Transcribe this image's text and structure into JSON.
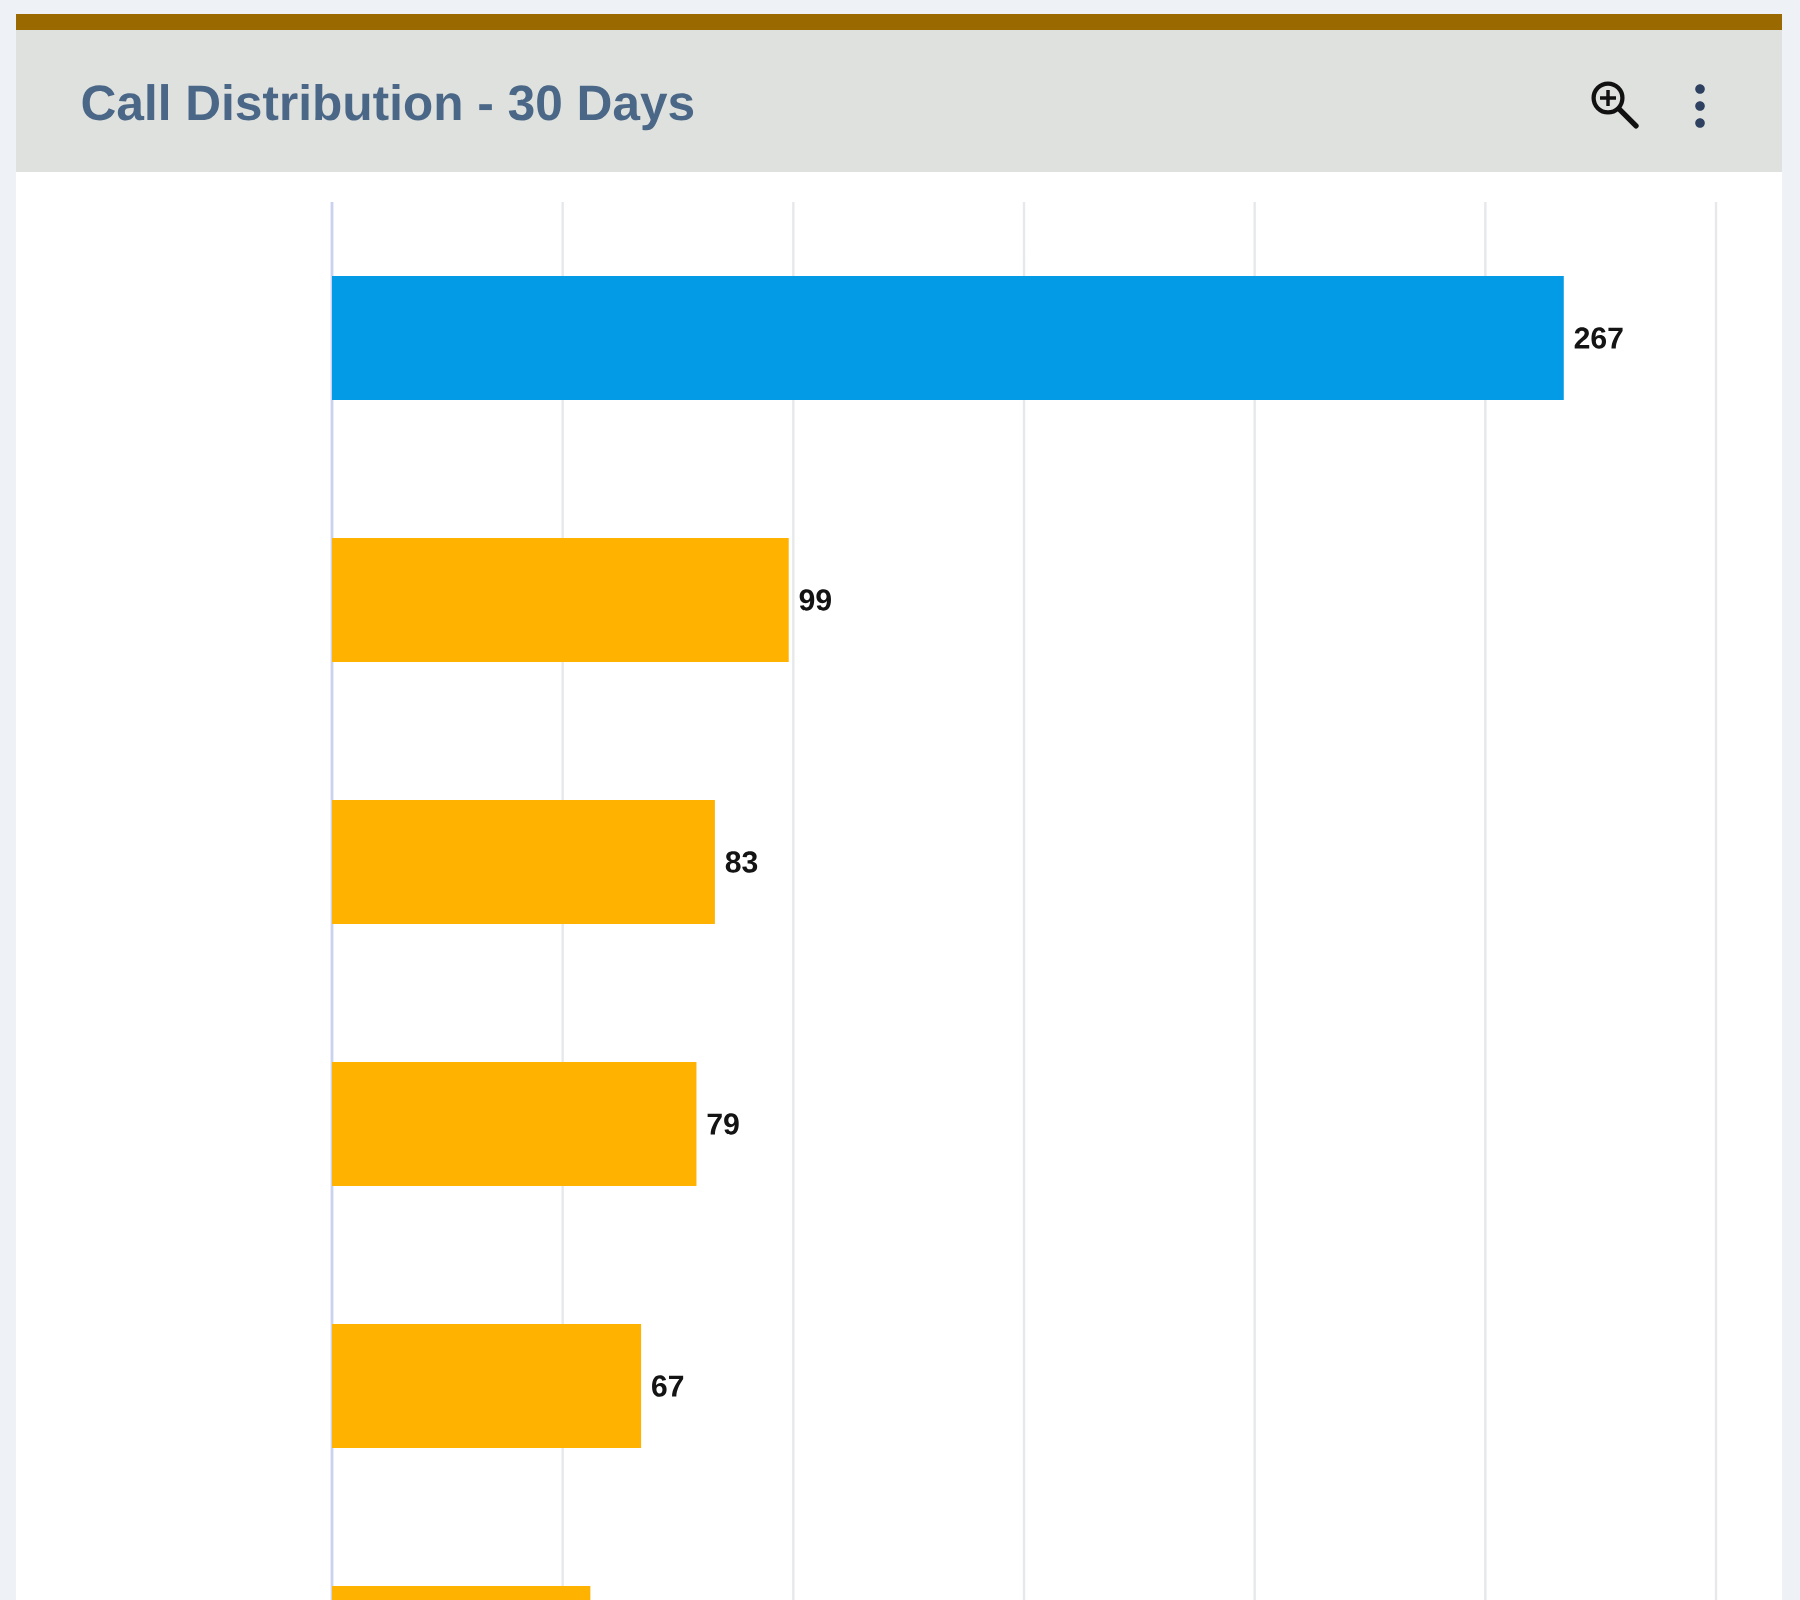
{
  "chart_data": {
    "type": "bar",
    "orientation": "horizontal",
    "title": "Call Distribution - 30 Days",
    "categories": [
      null,
      null,
      null,
      null,
      null,
      null
    ],
    "values": [
      267,
      99,
      83,
      79,
      67,
      56
    ],
    "colors": [
      "#039be5",
      "#ffb300",
      "#ffb300",
      "#ffb300",
      "#ffb300",
      "#ffb300"
    ],
    "value_labels": [
      "267",
      "99",
      "83",
      "79",
      "67",
      null
    ],
    "xlim": [
      0,
      300
    ],
    "xticks": [
      {
        "value": 0,
        "label": null
      },
      {
        "value": 50,
        "label": null
      },
      {
        "value": 100,
        "label": null
      },
      {
        "value": 150,
        "label": null
      },
      {
        "value": 200,
        "label": null
      },
      {
        "value": 250,
        "label": null
      },
      {
        "value": 300,
        "label": null
      }
    ],
    "grid": "x"
  }
}
